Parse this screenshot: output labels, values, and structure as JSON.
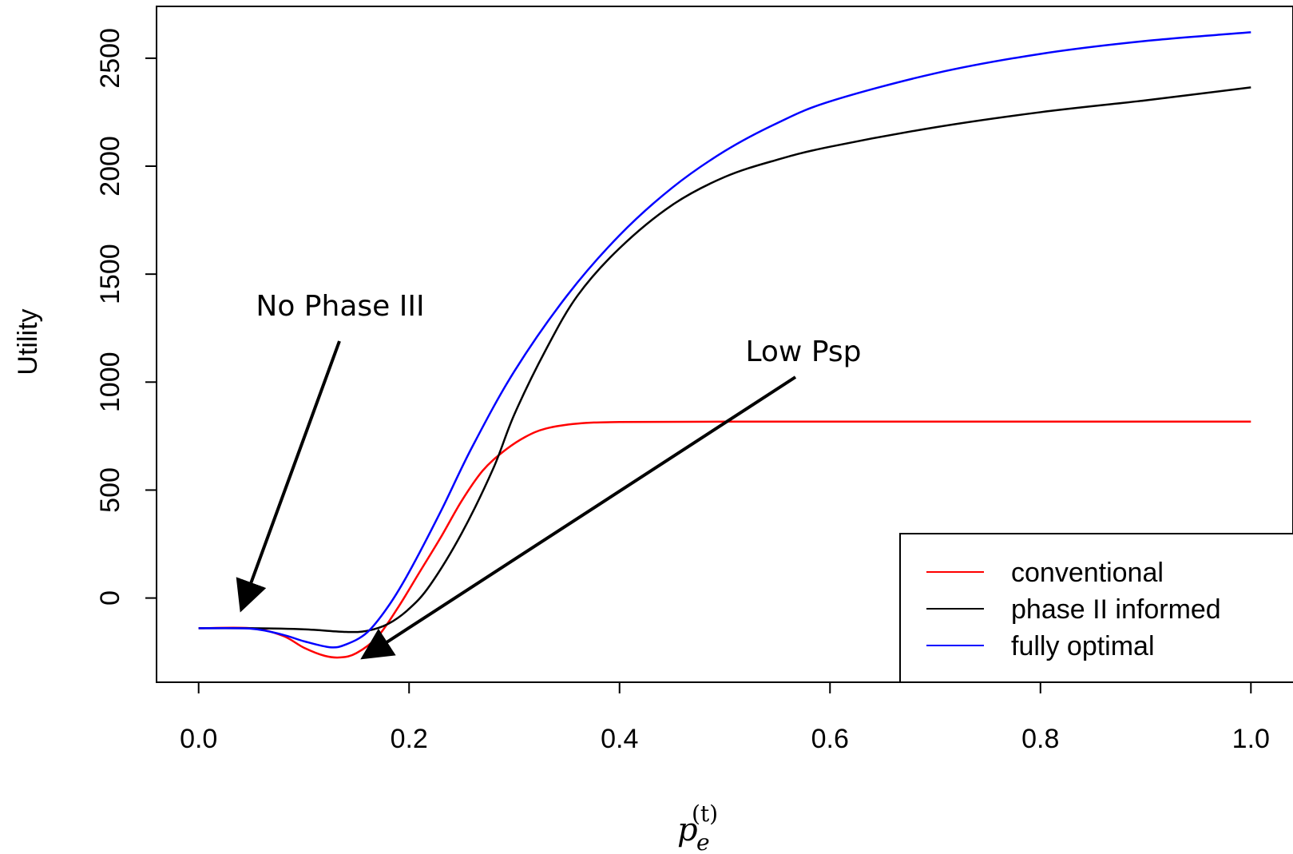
{
  "chart_data": {
    "type": "line",
    "title": "",
    "xlabel": {
      "base": "p",
      "subscript": "e",
      "superscript": "(t)"
    },
    "ylabel": "Utility",
    "xlim": [
      -0.04,
      1.04
    ],
    "ylim": [
      -390,
      2740
    ],
    "xticks": [
      "0.0",
      "0.2",
      "0.4",
      "0.6",
      "0.8",
      "1.0"
    ],
    "yticks": [
      "0",
      "500",
      "1000",
      "1500",
      "2000",
      "2500"
    ],
    "grid": false,
    "legend_position": "bottom-right",
    "series": [
      {
        "name": "conventional",
        "color": "#ff0000",
        "points": [
          [
            0.0,
            -140
          ],
          [
            0.05,
            -140
          ],
          [
            0.08,
            -175
          ],
          [
            0.1,
            -230
          ],
          [
            0.12,
            -268
          ],
          [
            0.135,
            -275
          ],
          [
            0.15,
            -255
          ],
          [
            0.17,
            -180
          ],
          [
            0.19,
            -40
          ],
          [
            0.21,
            120
          ],
          [
            0.23,
            280
          ],
          [
            0.25,
            450
          ],
          [
            0.27,
            590
          ],
          [
            0.29,
            680
          ],
          [
            0.31,
            745
          ],
          [
            0.33,
            785
          ],
          [
            0.36,
            808
          ],
          [
            0.4,
            815
          ],
          [
            0.5,
            817
          ],
          [
            0.7,
            817
          ],
          [
            1.0,
            817
          ]
        ]
      },
      {
        "name": "phase II informed",
        "color": "#000000",
        "points": [
          [
            0.0,
            -140
          ],
          [
            0.05,
            -140
          ],
          [
            0.1,
            -145
          ],
          [
            0.14,
            -157
          ],
          [
            0.16,
            -152
          ],
          [
            0.18,
            -120
          ],
          [
            0.2,
            -50
          ],
          [
            0.22,
            60
          ],
          [
            0.25,
            300
          ],
          [
            0.28,
            600
          ],
          [
            0.3,
            850
          ],
          [
            0.33,
            1150
          ],
          [
            0.36,
            1400
          ],
          [
            0.4,
            1620
          ],
          [
            0.45,
            1820
          ],
          [
            0.5,
            1950
          ],
          [
            0.55,
            2030
          ],
          [
            0.6,
            2090
          ],
          [
            0.7,
            2180
          ],
          [
            0.8,
            2250
          ],
          [
            0.9,
            2305
          ],
          [
            1.0,
            2365
          ]
        ]
      },
      {
        "name": "fully optimal",
        "color": "#0000ff",
        "points": [
          [
            0.0,
            -140
          ],
          [
            0.05,
            -142
          ],
          [
            0.08,
            -170
          ],
          [
            0.1,
            -200
          ],
          [
            0.125,
            -228
          ],
          [
            0.14,
            -215
          ],
          [
            0.16,
            -160
          ],
          [
            0.18,
            -40
          ],
          [
            0.2,
            120
          ],
          [
            0.23,
            400
          ],
          [
            0.26,
            700
          ],
          [
            0.3,
            1050
          ],
          [
            0.35,
            1400
          ],
          [
            0.4,
            1680
          ],
          [
            0.45,
            1900
          ],
          [
            0.5,
            2070
          ],
          [
            0.55,
            2200
          ],
          [
            0.6,
            2300
          ],
          [
            0.7,
            2430
          ],
          [
            0.8,
            2520
          ],
          [
            0.9,
            2580
          ],
          [
            1.0,
            2620
          ]
        ]
      }
    ],
    "annotations": [
      {
        "text": "No Phase III",
        "target": [
          0.04,
          -60
        ]
      },
      {
        "text": "Low Psp",
        "target": [
          0.155,
          -280
        ]
      }
    ]
  }
}
